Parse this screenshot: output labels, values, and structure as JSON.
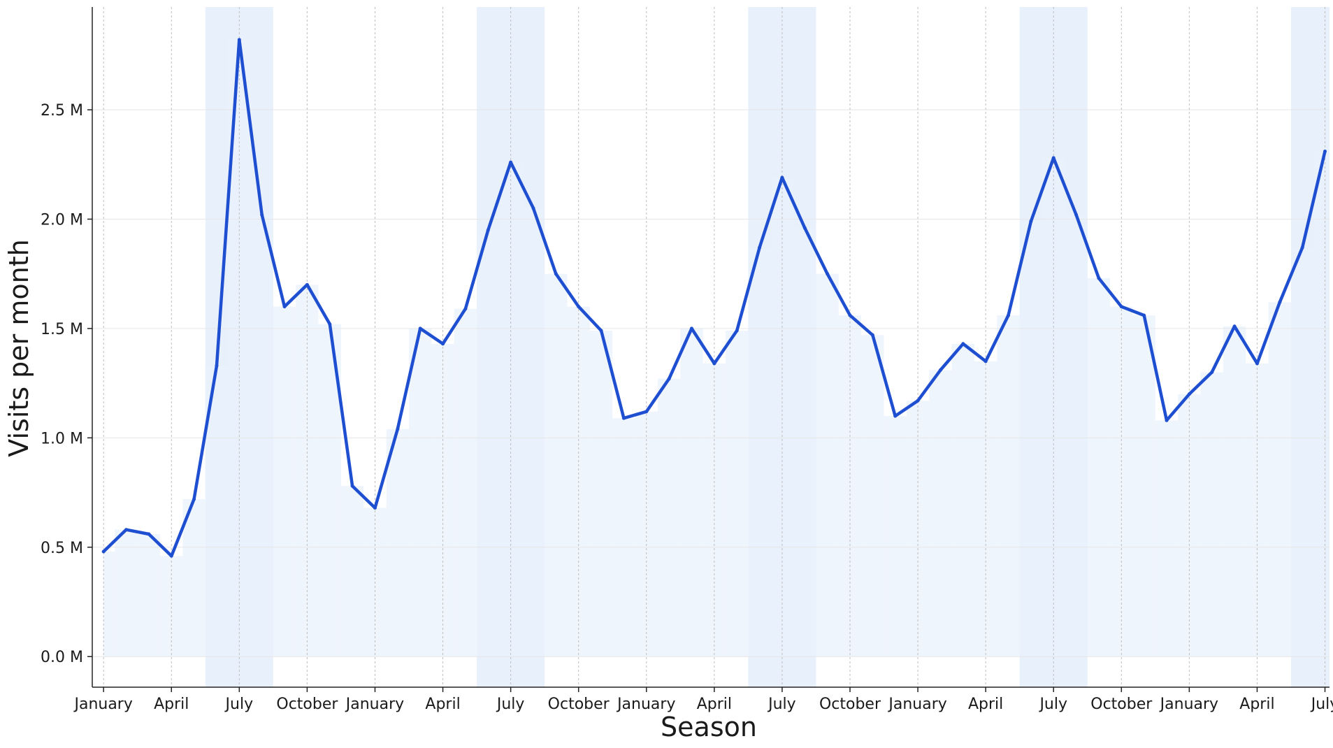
{
  "chart_data": {
    "type": "line",
    "xlabel": "Season",
    "ylabel": "Visits per month",
    "x_tick_labels": [
      "January",
      "April",
      "July",
      "October",
      "January",
      "April",
      "July",
      "October",
      "January",
      "April",
      "July",
      "October",
      "January",
      "April",
      "July",
      "October",
      "January",
      "April",
      "July"
    ],
    "y_tick_labels": [
      "0.0 M",
      "0.5 M",
      "1.0 M",
      "1.5 M",
      "2.0 M",
      "2.5 M"
    ],
    "y_ticks": [
      0,
      0.5,
      1.0,
      1.5,
      2.0,
      2.5
    ],
    "ylim": [
      -0.14,
      2.97
    ],
    "x_unit": "month index (0 = first January)",
    "xlim": [
      -0.5,
      54.2
    ],
    "grid": true,
    "summer_bands": [
      [
        4.5,
        7.5
      ],
      [
        16.5,
        19.5
      ],
      [
        28.5,
        31.5
      ],
      [
        40.5,
        43.5
      ],
      [
        52.5,
        54.2
      ]
    ],
    "colors": {
      "line": "#1f4fd1",
      "band": "#dbe8fb",
      "fill": "#e9f1fc"
    },
    "series": [
      {
        "values": [
          0.48,
          0.58,
          0.56,
          0.46,
          0.72,
          1.33,
          2.82,
          2.02,
          1.6,
          1.7,
          1.52,
          0.78,
          0.68,
          1.04,
          1.5,
          1.43,
          1.59,
          1.95,
          2.26,
          2.05,
          1.75,
          1.6,
          1.49,
          1.09,
          1.12,
          1.27,
          1.5,
          1.34,
          1.49,
          1.87,
          2.19,
          1.96,
          1.75,
          1.56,
          1.47,
          1.1,
          1.17,
          1.31,
          1.43,
          1.35,
          1.56,
          1.99,
          2.28,
          2.02,
          1.73,
          1.6,
          1.56,
          1.08,
          1.2,
          1.3,
          1.51,
          1.34,
          1.62,
          1.87,
          2.31
        ]
      }
    ]
  }
}
